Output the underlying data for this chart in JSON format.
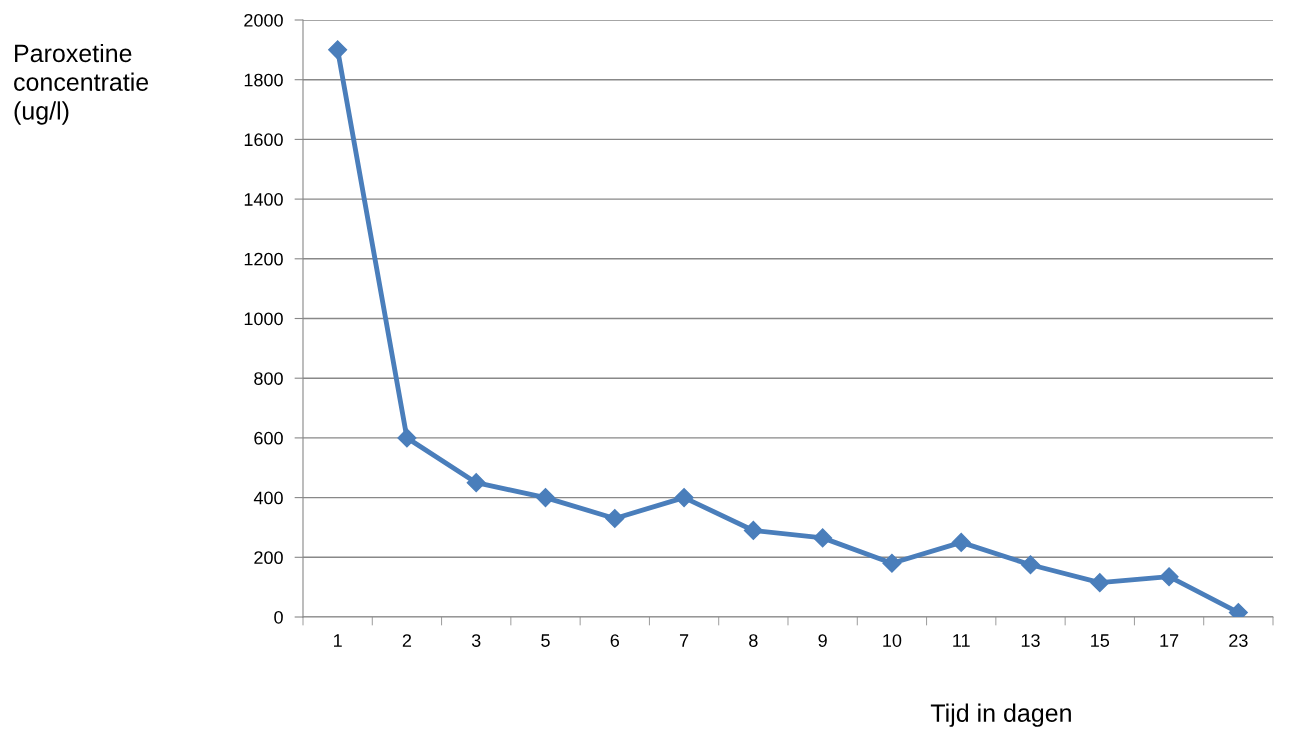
{
  "chart_data": {
    "type": "line",
    "xlabel": "Tijd in dagen",
    "ylabel": "Paroxetine\nconcentratie\n(ug/l)",
    "categories": [
      "1",
      "2",
      "3",
      "5",
      "6",
      "7",
      "8",
      "9",
      "10",
      "11",
      "13",
      "15",
      "17",
      "23"
    ],
    "series": [
      {
        "color": "#4a7ebb",
        "values": [
          1900,
          600,
          450,
          400,
          330,
          400,
          290,
          265,
          180,
          250,
          175,
          115,
          135,
          15
        ]
      }
    ],
    "ylim": [
      0,
      2000
    ],
    "yticks": [
      0,
      200,
      400,
      600,
      800,
      1000,
      1200,
      1400,
      1600,
      1800,
      2000
    ],
    "grid": "y",
    "marker": "diamond",
    "line_style": "solid",
    "legend": false
  }
}
